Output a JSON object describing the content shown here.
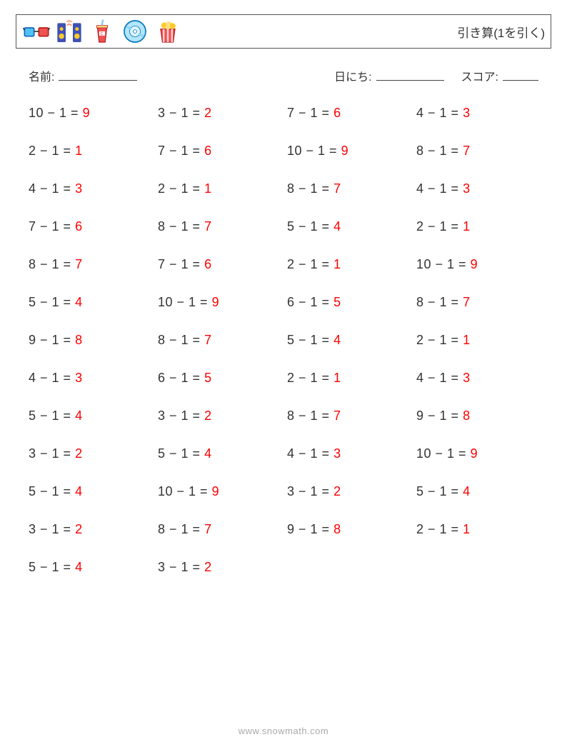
{
  "colors": {
    "text": "#333333",
    "answer": "#ff0000",
    "footer": "#aaaaaa",
    "border": "#555555",
    "background": "#ffffff"
  },
  "fontsize": {
    "title": 17,
    "info": 16,
    "problem": 18,
    "footer": 13
  },
  "header": {
    "title": "引き算(1を引く)"
  },
  "info": {
    "name_label": "名前:",
    "date_label": "日にち:",
    "score_label": "スコア:",
    "name_blank_width": 110,
    "date_blank_width": 95,
    "score_blank_width": 50
  },
  "layout": {
    "columns": 4,
    "row_gap": 32,
    "col_gap": 10
  },
  "problems": [
    {
      "a": 10,
      "b": 1,
      "ans": 9
    },
    {
      "a": 3,
      "b": 1,
      "ans": 2
    },
    {
      "a": 7,
      "b": 1,
      "ans": 6
    },
    {
      "a": 4,
      "b": 1,
      "ans": 3
    },
    {
      "a": 2,
      "b": 1,
      "ans": 1
    },
    {
      "a": 7,
      "b": 1,
      "ans": 6
    },
    {
      "a": 10,
      "b": 1,
      "ans": 9
    },
    {
      "a": 8,
      "b": 1,
      "ans": 7
    },
    {
      "a": 4,
      "b": 1,
      "ans": 3
    },
    {
      "a": 2,
      "b": 1,
      "ans": 1
    },
    {
      "a": 8,
      "b": 1,
      "ans": 7
    },
    {
      "a": 4,
      "b": 1,
      "ans": 3
    },
    {
      "a": 7,
      "b": 1,
      "ans": 6
    },
    {
      "a": 8,
      "b": 1,
      "ans": 7
    },
    {
      "a": 5,
      "b": 1,
      "ans": 4
    },
    {
      "a": 2,
      "b": 1,
      "ans": 1
    },
    {
      "a": 8,
      "b": 1,
      "ans": 7
    },
    {
      "a": 7,
      "b": 1,
      "ans": 6
    },
    {
      "a": 2,
      "b": 1,
      "ans": 1
    },
    {
      "a": 10,
      "b": 1,
      "ans": 9
    },
    {
      "a": 5,
      "b": 1,
      "ans": 4
    },
    {
      "a": 10,
      "b": 1,
      "ans": 9
    },
    {
      "a": 6,
      "b": 1,
      "ans": 5
    },
    {
      "a": 8,
      "b": 1,
      "ans": 7
    },
    {
      "a": 9,
      "b": 1,
      "ans": 8
    },
    {
      "a": 8,
      "b": 1,
      "ans": 7
    },
    {
      "a": 5,
      "b": 1,
      "ans": 4
    },
    {
      "a": 2,
      "b": 1,
      "ans": 1
    },
    {
      "a": 4,
      "b": 1,
      "ans": 3
    },
    {
      "a": 6,
      "b": 1,
      "ans": 5
    },
    {
      "a": 2,
      "b": 1,
      "ans": 1
    },
    {
      "a": 4,
      "b": 1,
      "ans": 3
    },
    {
      "a": 5,
      "b": 1,
      "ans": 4
    },
    {
      "a": 3,
      "b": 1,
      "ans": 2
    },
    {
      "a": 8,
      "b": 1,
      "ans": 7
    },
    {
      "a": 9,
      "b": 1,
      "ans": 8
    },
    {
      "a": 3,
      "b": 1,
      "ans": 2
    },
    {
      "a": 5,
      "b": 1,
      "ans": 4
    },
    {
      "a": 4,
      "b": 1,
      "ans": 3
    },
    {
      "a": 10,
      "b": 1,
      "ans": 9
    },
    {
      "a": 5,
      "b": 1,
      "ans": 4
    },
    {
      "a": 10,
      "b": 1,
      "ans": 9
    },
    {
      "a": 3,
      "b": 1,
      "ans": 2
    },
    {
      "a": 5,
      "b": 1,
      "ans": 4
    },
    {
      "a": 3,
      "b": 1,
      "ans": 2
    },
    {
      "a": 8,
      "b": 1,
      "ans": 7
    },
    {
      "a": 9,
      "b": 1,
      "ans": 8
    },
    {
      "a": 2,
      "b": 1,
      "ans": 1
    },
    {
      "a": 5,
      "b": 1,
      "ans": 4
    },
    {
      "a": 3,
      "b": 1,
      "ans": 2
    }
  ],
  "footer": {
    "text": "www.snowmath.com"
  }
}
